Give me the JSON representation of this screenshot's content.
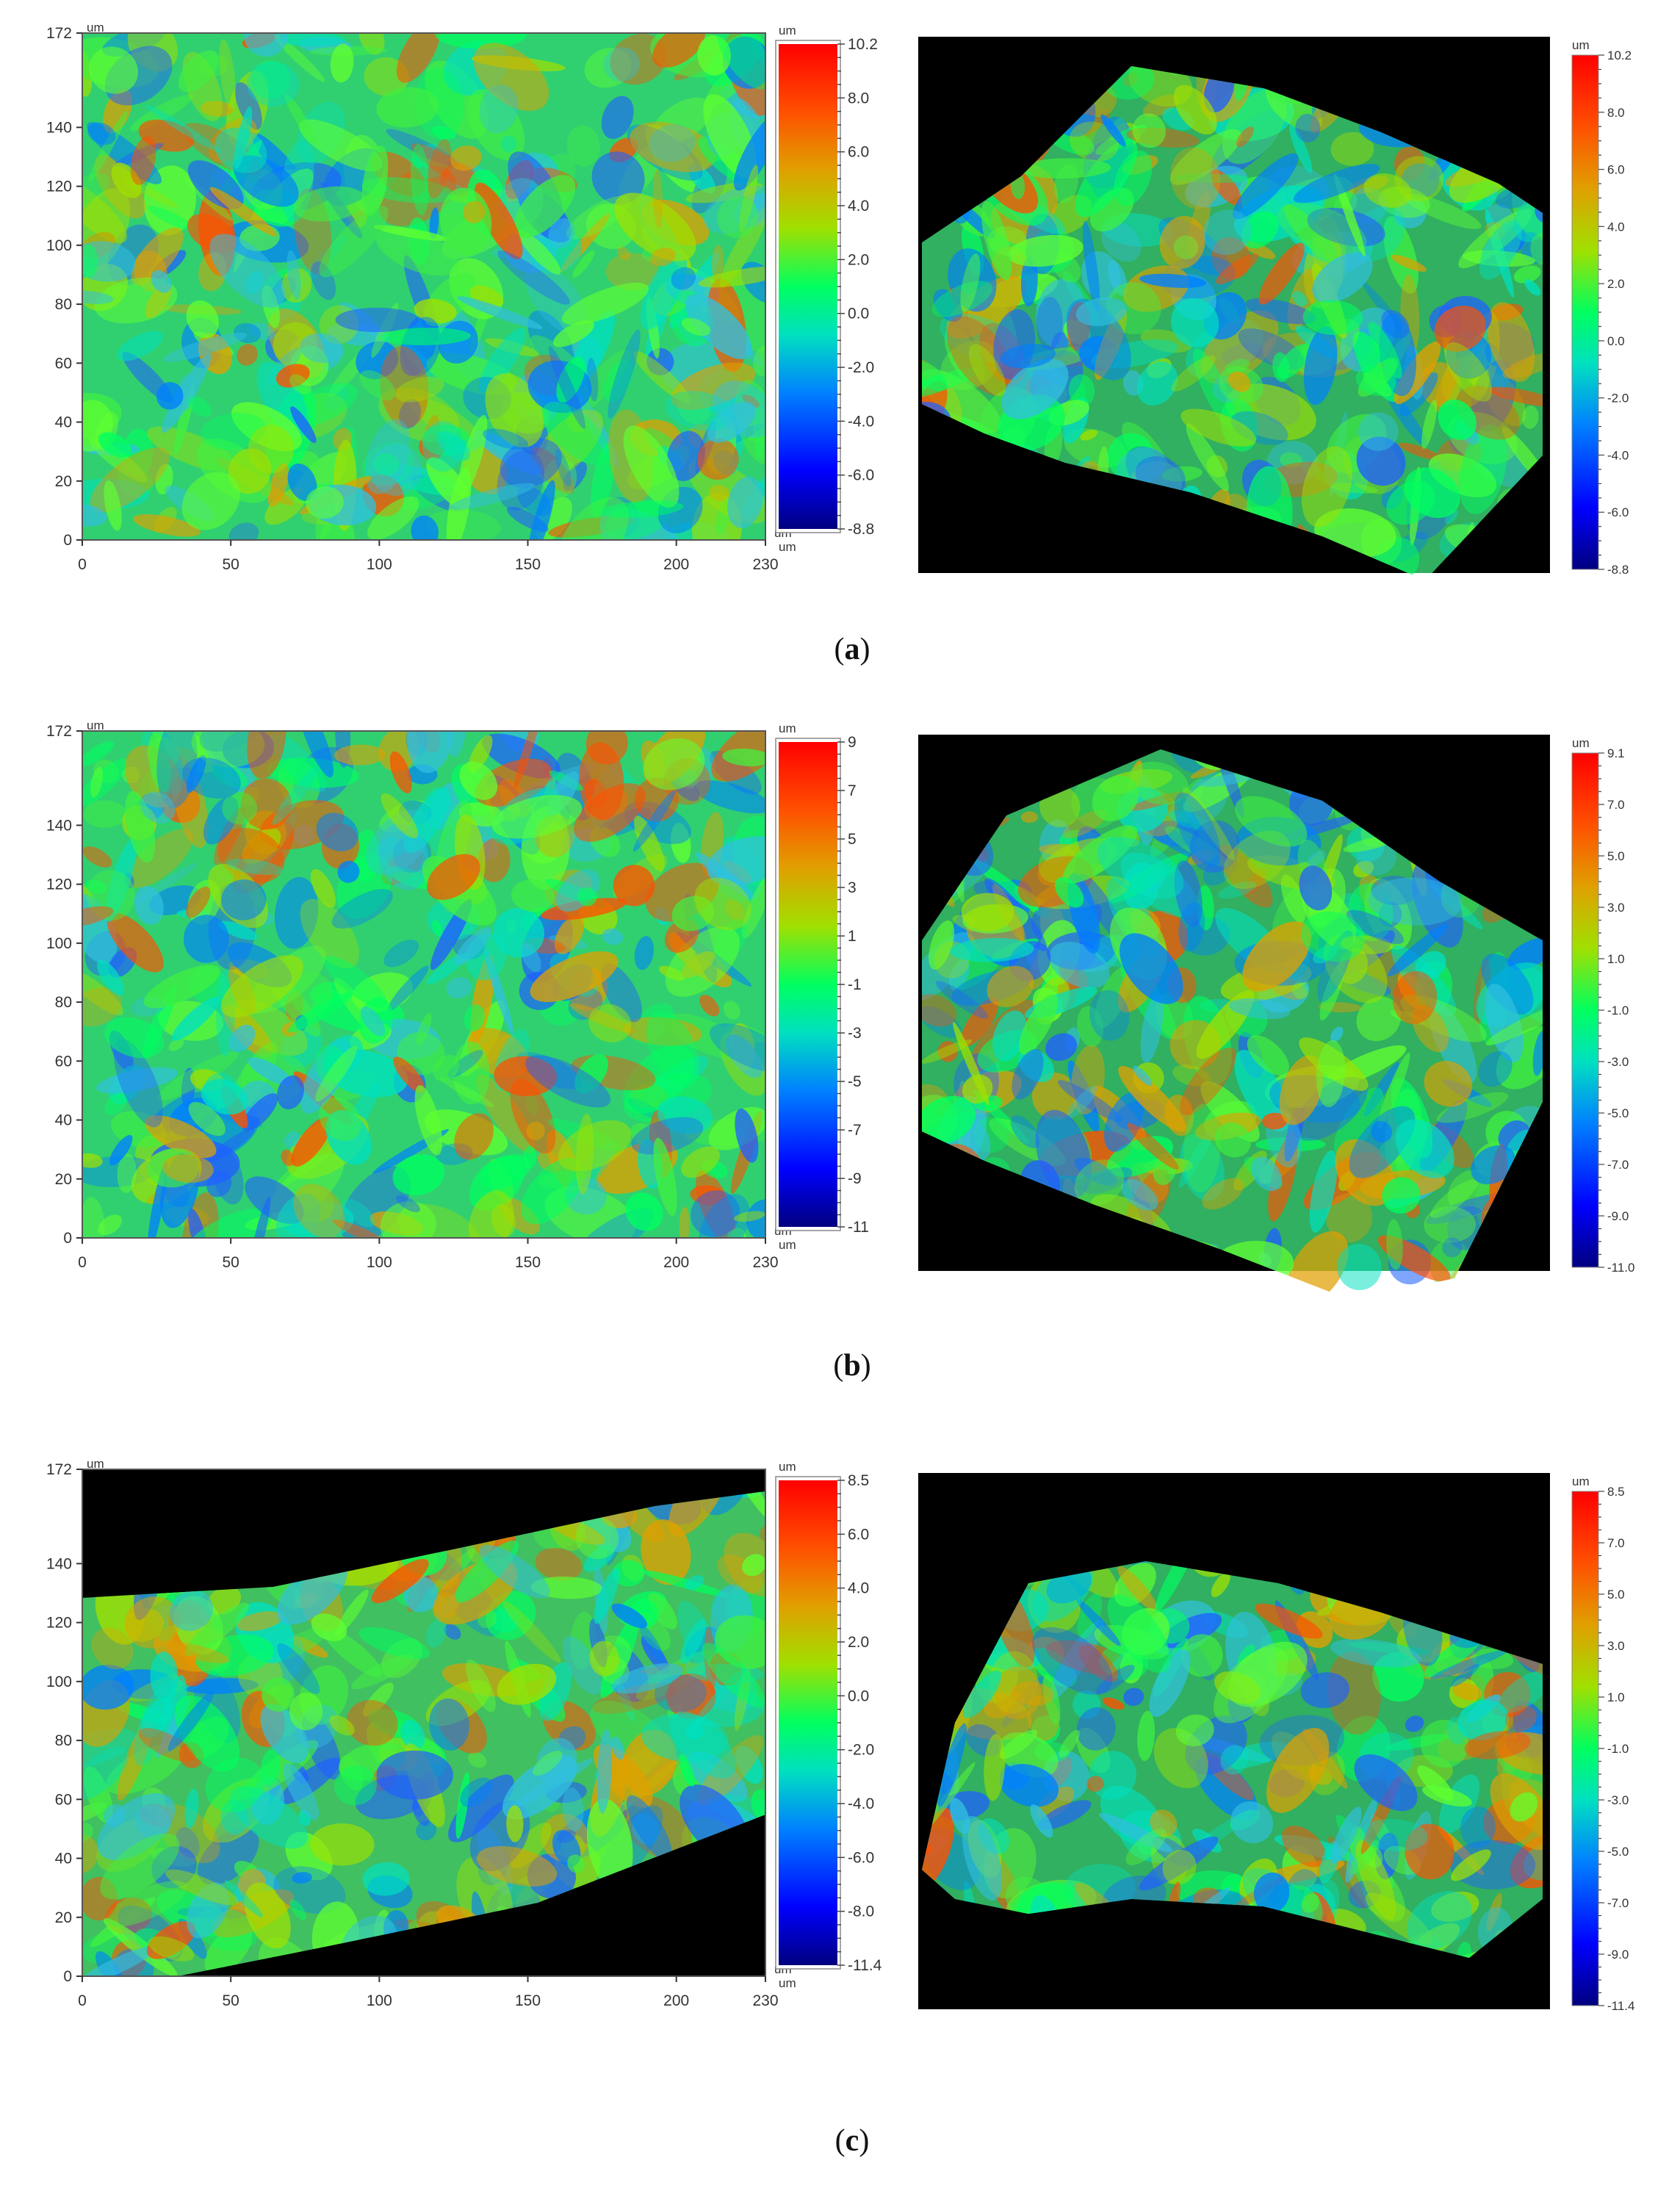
{
  "rows": [
    {
      "caption": "a",
      "plot2d": {
        "x_unit": "um",
        "y_unit": "um",
        "x_ticks": [
          "0",
          "50",
          "100",
          "150",
          "200",
          "230"
        ],
        "y_ticks": [
          "0",
          "20",
          "40",
          "60",
          "80",
          "100",
          "120",
          "140",
          "172"
        ],
        "colorbar": {
          "unit_top": "um",
          "unit_bottom": "um",
          "labels": [
            "10.2",
            "8.0",
            "6.0",
            "4.0",
            "2.0",
            "0.0",
            "-2.0",
            "-4.0",
            "-6.0",
            "-8.8"
          ]
        }
      },
      "plot3d": {
        "colorbar": {
          "unit_top": "um",
          "labels": [
            "10.2",
            "8.0",
            "6.0",
            "4.0",
            "2.0",
            "0.0",
            "-2.0",
            "-4.0",
            "-6.0",
            "-8.8"
          ]
        }
      }
    },
    {
      "caption": "b",
      "plot2d": {
        "x_unit": "um",
        "y_unit": "um",
        "x_ticks": [
          "0",
          "50",
          "100",
          "150",
          "200",
          "230"
        ],
        "y_ticks": [
          "0",
          "20",
          "40",
          "60",
          "80",
          "100",
          "120",
          "140",
          "172"
        ],
        "colorbar": {
          "unit_top": "um",
          "unit_bottom": "um",
          "labels": [
            "9",
            "7",
            "5",
            "3",
            "1",
            "-1",
            "-3",
            "-5",
            "-7",
            "-9",
            "-11"
          ]
        }
      },
      "plot3d": {
        "colorbar": {
          "unit_top": "um",
          "labels": [
            "9.1",
            "7.0",
            "5.0",
            "3.0",
            "1.0",
            "-1.0",
            "-3.0",
            "-5.0",
            "-7.0",
            "-9.0",
            "-11.0"
          ]
        }
      }
    },
    {
      "caption": "c",
      "plot2d": {
        "x_unit": "um",
        "y_unit": "um",
        "x_ticks": [
          "0",
          "50",
          "100",
          "150",
          "200",
          "230"
        ],
        "y_ticks": [
          "0",
          "20",
          "40",
          "60",
          "80",
          "100",
          "120",
          "140",
          "172"
        ],
        "colorbar": {
          "unit_top": "um",
          "unit_bottom": "um",
          "labels": [
            "8.5",
            "6.0",
            "4.0",
            "2.0",
            "0.0",
            "-2.0",
            "-4.0",
            "-6.0",
            "-8.0",
            "-11.4"
          ]
        }
      },
      "plot3d": {
        "colorbar": {
          "unit_top": "um",
          "labels": [
            "8.5",
            "7.0",
            "5.0",
            "3.0",
            "1.0",
            "-1.0",
            "-3.0",
            "-5.0",
            "-7.0",
            "-9.0",
            "-11.4"
          ]
        }
      }
    }
  ],
  "chart_data": [
    {
      "type": "heatmap",
      "panel": "a-2d",
      "xlim": [
        0,
        230
      ],
      "ylim": [
        0,
        172
      ],
      "x_ticks": [
        0,
        50,
        100,
        150,
        200,
        230
      ],
      "y_ticks": [
        0,
        20,
        40,
        60,
        80,
        100,
        120,
        140,
        172
      ],
      "colorscale": "jet",
      "zlim": [
        -8.8,
        10.2
      ],
      "zunit": "um"
    },
    {
      "type": "heatmap",
      "panel": "a-3d",
      "colorscale": "jet",
      "zlim": [
        -8.8,
        10.2
      ],
      "zunit": "um"
    },
    {
      "type": "heatmap",
      "panel": "b-2d",
      "xlim": [
        0,
        230
      ],
      "ylim": [
        0,
        172
      ],
      "x_ticks": [
        0,
        50,
        100,
        150,
        200,
        230
      ],
      "y_ticks": [
        0,
        20,
        40,
        60,
        80,
        100,
        120,
        140,
        172
      ],
      "colorscale": "jet",
      "zlim": [
        -11,
        9
      ],
      "zunit": "um"
    },
    {
      "type": "heatmap",
      "panel": "b-3d",
      "colorscale": "jet",
      "zlim": [
        -11,
        9.1
      ],
      "zunit": "um"
    },
    {
      "type": "heatmap",
      "panel": "c-2d",
      "xlim": [
        0,
        230
      ],
      "ylim": [
        0,
        172
      ],
      "x_ticks": [
        0,
        50,
        100,
        150,
        200,
        230
      ],
      "y_ticks": [
        0,
        20,
        40,
        60,
        80,
        100,
        120,
        140,
        172
      ],
      "colorscale": "jet",
      "zlim": [
        -11.4,
        8.5
      ],
      "zunit": "um"
    },
    {
      "type": "heatmap",
      "panel": "c-3d",
      "colorscale": "jet",
      "zlim": [
        -11.4,
        8.5
      ],
      "zunit": "um"
    }
  ]
}
